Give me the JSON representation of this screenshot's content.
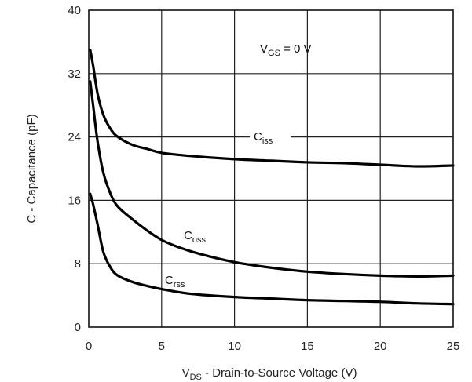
{
  "chart_data": {
    "type": "line",
    "title": "",
    "xlabel": {
      "main": "V",
      "sub": "DS",
      "rest": " - Drain-to-Source Voltage (V)"
    },
    "ylabel": "C - Capacitance (pF)",
    "xlim": [
      0,
      25
    ],
    "ylim": [
      0,
      40
    ],
    "xticks": [
      0,
      5,
      10,
      15,
      20,
      25
    ],
    "yticks": [
      0,
      8,
      16,
      24,
      32,
      40
    ],
    "xtick_labels": [
      "0",
      "5",
      "10",
      "15",
      "20",
      "25"
    ],
    "ytick_labels": [
      "0",
      "8",
      "16",
      "24",
      "32",
      "40"
    ],
    "grid": true,
    "condition": {
      "main": "V",
      "sub": "GS",
      "rest": " = 0 V"
    },
    "series": [
      {
        "name": "Ciss",
        "label": {
          "main": "C",
          "sub": "iss"
        },
        "x": [
          0.1,
          0.3,
          0.6,
          1.0,
          1.5,
          2.0,
          3.0,
          4.0,
          5.0,
          7.0,
          10.0,
          12.5,
          15.0,
          17.5,
          20.0,
          22.5,
          25.0
        ],
        "y": [
          35.0,
          33.0,
          29.5,
          26.8,
          25.0,
          24.0,
          23.0,
          22.5,
          22.0,
          21.6,
          21.2,
          21.0,
          20.8,
          20.7,
          20.5,
          20.3,
          20.4
        ]
      },
      {
        "name": "Coss",
        "label": {
          "main": "C",
          "sub": "oss"
        },
        "x": [
          0.1,
          0.3,
          0.6,
          1.0,
          1.5,
          2.0,
          3.0,
          4.0,
          5.0,
          6.0,
          7.5,
          10.0,
          12.5,
          15.0,
          17.5,
          20.0,
          22.5,
          25.0
        ],
        "y": [
          31.0,
          28.0,
          23.5,
          19.5,
          16.8,
          15.2,
          13.6,
          12.2,
          11.0,
          10.2,
          9.3,
          8.2,
          7.5,
          7.0,
          6.7,
          6.5,
          6.4,
          6.5
        ]
      },
      {
        "name": "Crss",
        "label": {
          "main": "C",
          "sub": "rss"
        },
        "x": [
          0.1,
          0.3,
          0.6,
          1.0,
          1.5,
          2.0,
          3.0,
          4.0,
          5.0,
          7.0,
          10.0,
          12.5,
          15.0,
          17.5,
          20.0,
          22.5,
          25.0
        ],
        "y": [
          16.8,
          15.5,
          13.0,
          9.5,
          7.5,
          6.5,
          5.7,
          5.2,
          4.8,
          4.2,
          3.8,
          3.6,
          3.4,
          3.3,
          3.2,
          3.0,
          2.9
        ]
      }
    ]
  }
}
